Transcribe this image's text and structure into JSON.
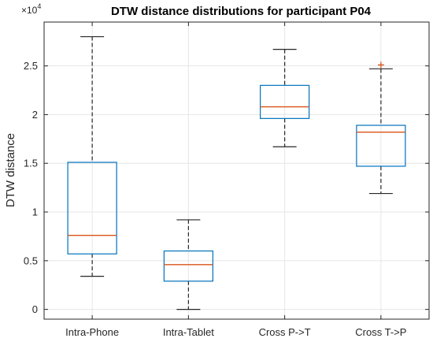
{
  "chart_data": {
    "type": "box",
    "title": "DTW distance distributions for participant P04",
    "xlabel": "",
    "ylabel": "DTW distance",
    "y_exponent_base": "×10",
    "y_exponent_power": "4",
    "ylim": [
      -0.1,
      2.95
    ],
    "yticks": [
      0,
      0.5,
      1,
      1.5,
      2,
      2.5
    ],
    "ytick_labels": [
      "0",
      "0.5",
      "1",
      "1.5",
      "2",
      "2.5"
    ],
    "grid": true,
    "categories": [
      "Intra-Phone",
      "Intra-Tablet",
      "Cross P->T",
      "Cross T->P"
    ],
    "boxes": [
      {
        "label": "Intra-Phone",
        "whisker_low": 0.34,
        "q1": 0.57,
        "median": 0.76,
        "q3": 1.51,
        "whisker_high": 2.8,
        "outliers": []
      },
      {
        "label": "Intra-Tablet",
        "whisker_low": 0.0,
        "q1": 0.29,
        "median": 0.46,
        "q3": 0.6,
        "whisker_high": 0.92,
        "outliers": []
      },
      {
        "label": "Cross P->T",
        "whisker_low": 1.67,
        "q1": 1.96,
        "median": 2.08,
        "q3": 2.3,
        "whisker_high": 2.67,
        "outliers": []
      },
      {
        "label": "Cross T->P",
        "whisker_low": 1.19,
        "q1": 1.47,
        "median": 1.82,
        "q3": 1.89,
        "whisker_high": 2.47,
        "outliers": [
          2.51
        ]
      }
    ],
    "colors": {
      "box": "#0072BD",
      "median": "#D95319",
      "whisker": "#262626",
      "outlier": "#D95319",
      "grid": "#E6E6E6",
      "axis": "#262626"
    }
  }
}
